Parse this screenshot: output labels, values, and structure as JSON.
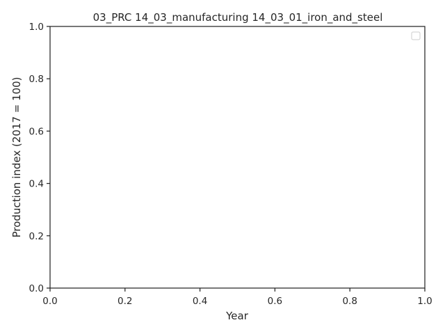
{
  "chart_data": {
    "type": "line",
    "title": "03_PRC 14_03_manufacturing 14_03_01_iron_and_steel",
    "xlabel": "Year",
    "ylabel": "Production index (2017 = 100)",
    "xlim": [
      0.0,
      1.0
    ],
    "ylim": [
      0.0,
      1.0
    ],
    "xticks": [
      "0.0",
      "0.2",
      "0.4",
      "0.6",
      "0.8",
      "1.0"
    ],
    "yticks": [
      "0.0",
      "0.2",
      "0.4",
      "0.6",
      "0.8",
      "1.0"
    ],
    "series": [],
    "grid": false,
    "legend": {
      "position": "top-right",
      "entries": []
    }
  }
}
